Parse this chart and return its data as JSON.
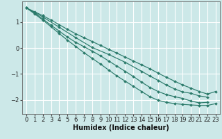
{
  "xlabel": "Humidex (Indice chaleur)",
  "ylabel": "",
  "background_color": "#cce8e8",
  "grid_color": "#ffffff",
  "line_color": "#2a7a6a",
  "xlim": [
    -0.5,
    23.5
  ],
  "ylim": [
    -2.55,
    1.8
  ],
  "yticks": [
    -2,
    -1,
    0,
    1
  ],
  "xticks": [
    0,
    1,
    2,
    3,
    4,
    5,
    6,
    7,
    8,
    9,
    10,
    11,
    12,
    13,
    14,
    15,
    16,
    17,
    18,
    19,
    20,
    21,
    22,
    23
  ],
  "lines": [
    {
      "x": [
        0,
        1,
        2,
        3,
        4,
        5,
        6,
        7,
        8,
        9,
        10,
        11,
        12,
        13,
        14,
        15,
        16,
        17,
        18,
        19,
        20,
        21,
        22,
        23
      ],
      "y": [
        1.55,
        1.4,
        1.25,
        1.08,
        0.9,
        0.72,
        0.55,
        0.4,
        0.25,
        0.1,
        -0.05,
        -0.2,
        -0.35,
        -0.5,
        -0.65,
        -0.8,
        -0.97,
        -1.13,
        -1.28,
        -1.43,
        -1.55,
        -1.68,
        -1.78,
        -1.68
      ]
    },
    {
      "x": [
        0,
        2,
        4,
        6,
        8,
        10,
        12,
        14,
        15,
        16,
        17,
        18,
        19,
        20,
        21,
        22
      ],
      "y": [
        1.55,
        1.2,
        0.8,
        0.4,
        0.02,
        -0.25,
        -0.55,
        -0.9,
        -1.08,
        -1.25,
        -1.43,
        -1.58,
        -1.7,
        -1.75,
        -1.85,
        -1.9
      ]
    },
    {
      "x": [
        0,
        1,
        2,
        3,
        4,
        5,
        6,
        7,
        8,
        9,
        10,
        11,
        12,
        13,
        14,
        15,
        16,
        17,
        18,
        19,
        20,
        21,
        22
      ],
      "y": [
        1.55,
        1.35,
        1.12,
        0.88,
        0.65,
        0.42,
        0.22,
        0.05,
        -0.12,
        -0.3,
        -0.5,
        -0.7,
        -0.9,
        -1.1,
        -1.32,
        -1.52,
        -1.68,
        -1.8,
        -1.88,
        -1.95,
        -2.05,
        -2.12,
        -2.1
      ]
    },
    {
      "x": [
        0,
        1,
        2,
        3,
        4,
        5,
        6,
        7,
        8,
        9,
        10,
        11,
        12,
        13,
        14,
        15,
        16,
        17,
        18,
        19,
        20,
        21,
        22,
        23
      ],
      "y": [
        1.55,
        1.32,
        1.08,
        0.82,
        0.56,
        0.3,
        0.06,
        -0.18,
        -0.4,
        -0.62,
        -0.85,
        -1.08,
        -1.28,
        -1.48,
        -1.68,
        -1.88,
        -2.02,
        -2.1,
        -2.15,
        -2.18,
        -2.2,
        -2.22,
        -2.22,
        -2.15
      ]
    }
  ]
}
